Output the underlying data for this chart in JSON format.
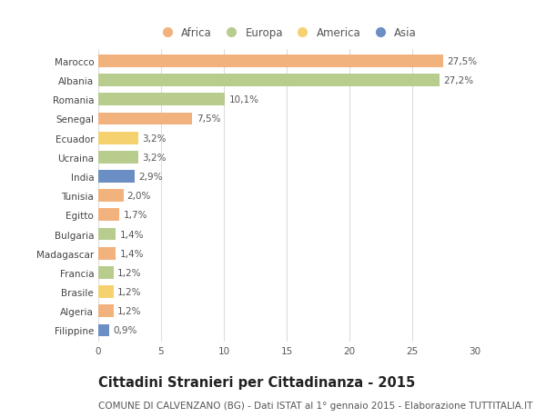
{
  "countries": [
    "Marocco",
    "Albania",
    "Romania",
    "Senegal",
    "Ecuador",
    "Ucraina",
    "India",
    "Tunisia",
    "Egitto",
    "Bulgaria",
    "Madagascar",
    "Francia",
    "Brasile",
    "Algeria",
    "Filippine"
  ],
  "values": [
    27.5,
    27.2,
    10.1,
    7.5,
    3.2,
    3.2,
    2.9,
    2.0,
    1.7,
    1.4,
    1.4,
    1.2,
    1.2,
    1.2,
    0.9
  ],
  "labels": [
    "27,5%",
    "27,2%",
    "10,1%",
    "7,5%",
    "3,2%",
    "3,2%",
    "2,9%",
    "2,0%",
    "1,7%",
    "1,4%",
    "1,4%",
    "1,2%",
    "1,2%",
    "1,2%",
    "0,9%"
  ],
  "continents": [
    "Africa",
    "Europa",
    "Europa",
    "Africa",
    "America",
    "Europa",
    "Asia",
    "Africa",
    "Africa",
    "Europa",
    "Africa",
    "Europa",
    "America",
    "Africa",
    "Asia"
  ],
  "colors": {
    "Africa": "#F2B27E",
    "Europa": "#B8CC8E",
    "America": "#F5D170",
    "Asia": "#6B8EC4"
  },
  "legend_order": [
    "Africa",
    "Europa",
    "America",
    "Asia"
  ],
  "xlim": [
    0,
    30
  ],
  "xticks": [
    0,
    5,
    10,
    15,
    20,
    25,
    30
  ],
  "title": "Cittadini Stranieri per Cittadinanza - 2015",
  "subtitle": "COMUNE DI CALVENZANO (BG) - Dati ISTAT al 1° gennaio 2015 - Elaborazione TUTTITALIA.IT",
  "bg_color": "#ffffff",
  "grid_color": "#dddddd",
  "bar_height": 0.65,
  "title_fontsize": 10.5,
  "subtitle_fontsize": 7.5,
  "label_fontsize": 7.5,
  "tick_fontsize": 7.5,
  "legend_fontsize": 8.5
}
